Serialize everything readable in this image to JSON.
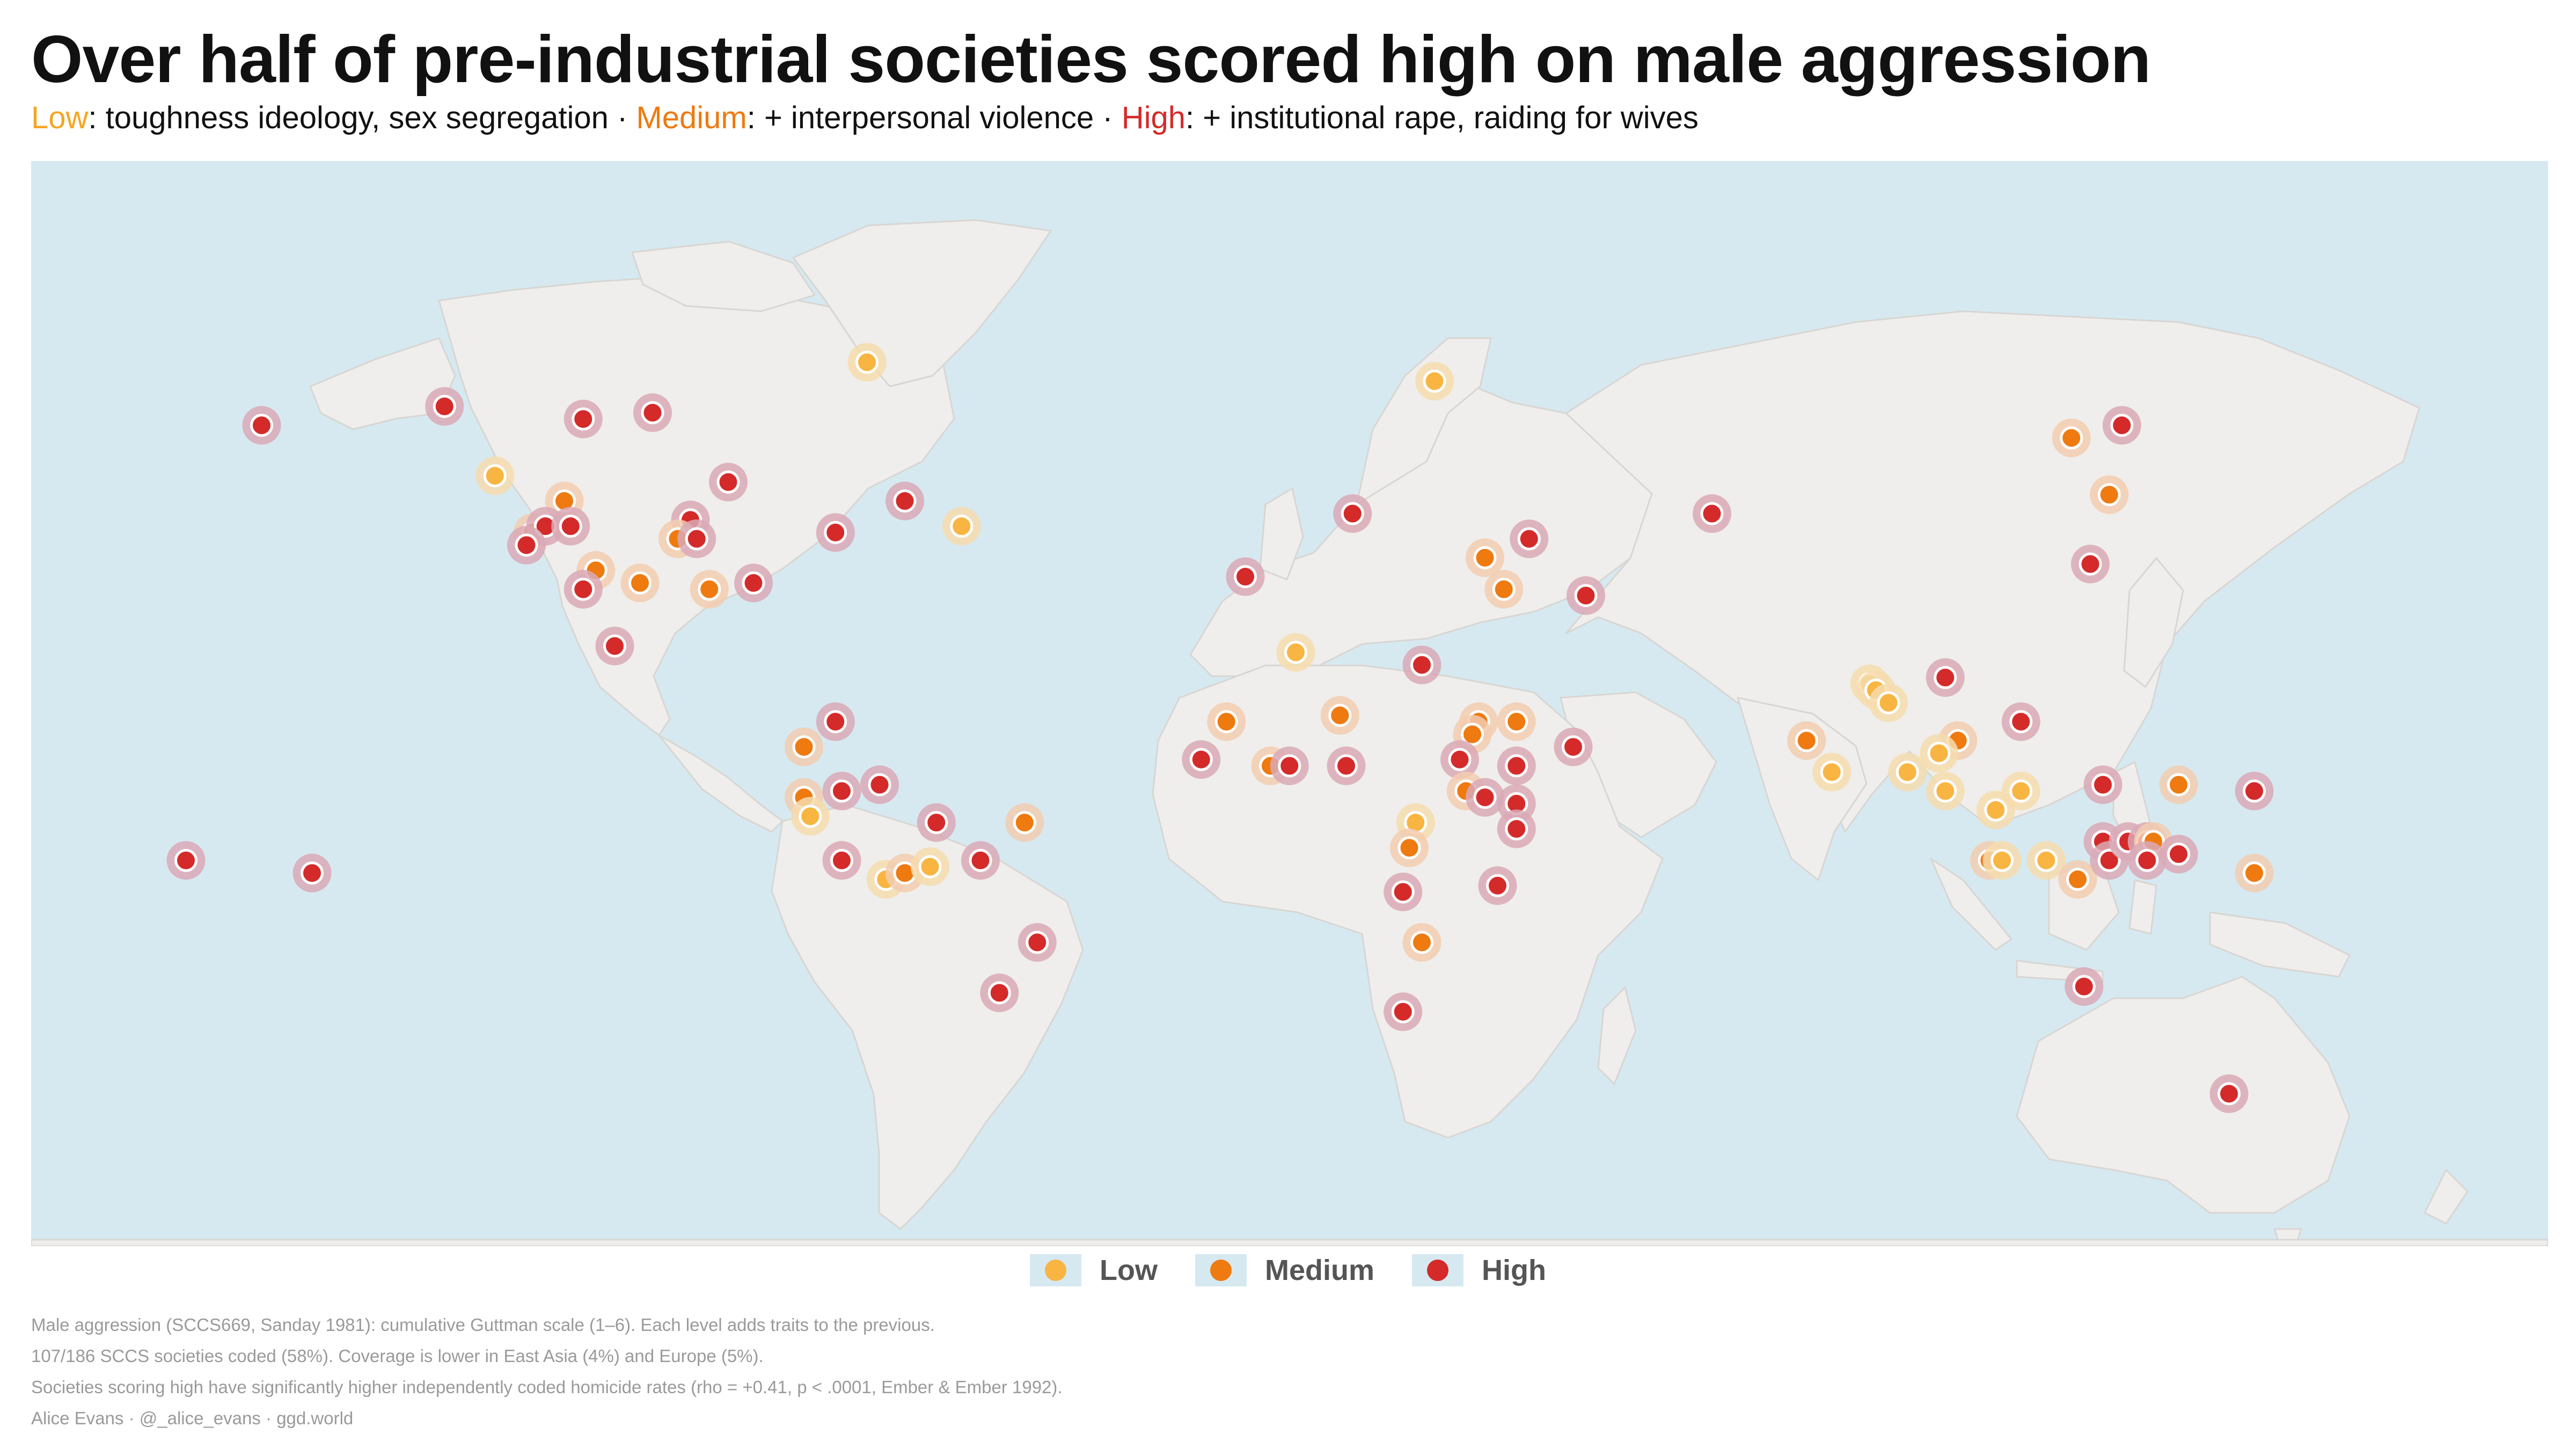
{
  "title": "Over half of pre-industrial societies scored high on male aggression",
  "subtitle": {
    "low_label": "Low",
    "low_text": ": toughness ideology, sex segregation · ",
    "medium_label": "Medium",
    "medium_text": ": + interpersonal violence · ",
    "high_label": "High",
    "high_text": ": + institutional rape, raiding for wives"
  },
  "colors": {
    "low": "#f8b542",
    "medium": "#ee7a10",
    "high": "#d42a2a",
    "ocean": "#d6e9f1",
    "land": "#efeeec"
  },
  "legend": {
    "items": [
      {
        "label": "Low",
        "level": "low"
      },
      {
        "label": "Medium",
        "level": "medium"
      },
      {
        "label": "High",
        "level": "high"
      }
    ]
  },
  "notes": {
    "line1": "Male aggression (SCCS669, Sanday 1981): cumulative Guttman scale (1–6). Each level adds traits to the previous.",
    "line2": "107/186 SCCS societies coded (58%). Coverage is lower in East Asia (4%) and Europe (5%).",
    "line3": "Societies scoring high have significantly higher independently coded homicide rates (rho = +0.41, p < .0001, Ember & Ember 1992).",
    "line4": "Alice Evans · @_alice_evans · ggd.world"
  },
  "map_data": {
    "projection": "equirectangular",
    "societies": [
      {
        "lon": -166,
        "lat": 66,
        "level": "high"
      },
      {
        "lon": -137,
        "lat": 69,
        "level": "high"
      },
      {
        "lon": -115,
        "lat": 67,
        "level": "high"
      },
      {
        "lon": -104,
        "lat": 68,
        "level": "high"
      },
      {
        "lon": -70,
        "lat": 76,
        "level": "low"
      },
      {
        "lon": -129,
        "lat": 58,
        "level": "low"
      },
      {
        "lon": -118,
        "lat": 54,
        "level": "medium"
      },
      {
        "lon": -92,
        "lat": 57,
        "level": "high"
      },
      {
        "lon": -64,
        "lat": 54,
        "level": "high"
      },
      {
        "lon": -55,
        "lat": 50,
        "level": "low"
      },
      {
        "lon": -98,
        "lat": 51,
        "level": "high"
      },
      {
        "lon": -75,
        "lat": 49,
        "level": "high"
      },
      {
        "lon": -123,
        "lat": 49,
        "level": "medium"
      },
      {
        "lon": -121,
        "lat": 50,
        "level": "high"
      },
      {
        "lon": -117,
        "lat": 50,
        "level": "high"
      },
      {
        "lon": -124,
        "lat": 47,
        "level": "high"
      },
      {
        "lon": -100,
        "lat": 48,
        "level": "medium"
      },
      {
        "lon": -97,
        "lat": 48,
        "level": "high"
      },
      {
        "lon": -113,
        "lat": 43,
        "level": "medium"
      },
      {
        "lon": -106,
        "lat": 41,
        "level": "medium"
      },
      {
        "lon": -95,
        "lat": 40,
        "level": "medium"
      },
      {
        "lon": -88,
        "lat": 41,
        "level": "high"
      },
      {
        "lon": -115,
        "lat": 40,
        "level": "high"
      },
      {
        "lon": -110,
        "lat": 31,
        "level": "high"
      },
      {
        "lon": -75,
        "lat": 19,
        "level": "high"
      },
      {
        "lon": -80,
        "lat": 15,
        "level": "medium"
      },
      {
        "lon": -80,
        "lat": 7,
        "level": "medium"
      },
      {
        "lon": -79,
        "lat": 4,
        "level": "low"
      },
      {
        "lon": -74,
        "lat": 8,
        "level": "high"
      },
      {
        "lon": -68,
        "lat": 9,
        "level": "high"
      },
      {
        "lon": -59,
        "lat": 3,
        "level": "high"
      },
      {
        "lon": -45,
        "lat": 3,
        "level": "medium"
      },
      {
        "lon": -74,
        "lat": -3,
        "level": "high"
      },
      {
        "lon": -67,
        "lat": -6,
        "level": "low"
      },
      {
        "lon": -64,
        "lat": -5,
        "level": "medium"
      },
      {
        "lon": -60,
        "lat": -4,
        "level": "low"
      },
      {
        "lon": -52,
        "lat": -3,
        "level": "high"
      },
      {
        "lon": -43,
        "lat": -16,
        "level": "high"
      },
      {
        "lon": -49,
        "lat": -24,
        "level": "high"
      },
      {
        "lon": -158,
        "lat": -5,
        "level": "high"
      },
      {
        "lon": -178,
        "lat": -3,
        "level": "high"
      },
      {
        "lon": -10,
        "lat": 42,
        "level": "high"
      },
      {
        "lon": 7,
        "lat": 52,
        "level": "high"
      },
      {
        "lon": 20,
        "lat": 73,
        "level": "low"
      },
      {
        "lon": 35,
        "lat": 48,
        "level": "high"
      },
      {
        "lon": 28,
        "lat": 45,
        "level": "medium"
      },
      {
        "lon": 44,
        "lat": 39,
        "level": "high"
      },
      {
        "lon": 31,
        "lat": 40,
        "level": "medium"
      },
      {
        "lon": 64,
        "lat": 52,
        "level": "high"
      },
      {
        "lon": -2,
        "lat": 30,
        "level": "low"
      },
      {
        "lon": 18,
        "lat": 28,
        "level": "high"
      },
      {
        "lon": -13,
        "lat": 19,
        "level": "medium"
      },
      {
        "lon": 5,
        "lat": 20,
        "level": "medium"
      },
      {
        "lon": -17,
        "lat": 13,
        "level": "high"
      },
      {
        "lon": -6,
        "lat": 12,
        "level": "medium"
      },
      {
        "lon": -3,
        "lat": 12,
        "level": "high"
      },
      {
        "lon": 6,
        "lat": 12,
        "level": "high"
      },
      {
        "lon": 27,
        "lat": 19,
        "level": "medium"
      },
      {
        "lon": 26,
        "lat": 17,
        "level": "medium"
      },
      {
        "lon": 33,
        "lat": 19,
        "level": "medium"
      },
      {
        "lon": 24,
        "lat": 13,
        "level": "high"
      },
      {
        "lon": 33,
        "lat": 12,
        "level": "high"
      },
      {
        "lon": 42,
        "lat": 15,
        "level": "high"
      },
      {
        "lon": 25,
        "lat": 8,
        "level": "medium"
      },
      {
        "lon": 28,
        "lat": 7,
        "level": "high"
      },
      {
        "lon": 33,
        "lat": 6,
        "level": "high"
      },
      {
        "lon": 33,
        "lat": 2,
        "level": "high"
      },
      {
        "lon": 17,
        "lat": 3,
        "level": "low"
      },
      {
        "lon": 16,
        "lat": -1,
        "level": "medium"
      },
      {
        "lon": 15,
        "lat": -8,
        "level": "high"
      },
      {
        "lon": 30,
        "lat": -7,
        "level": "high"
      },
      {
        "lon": 18,
        "lat": -16,
        "level": "medium"
      },
      {
        "lon": 15,
        "lat": -27,
        "level": "high"
      },
      {
        "lon": 79,
        "lat": 16,
        "level": "medium"
      },
      {
        "lon": 83,
        "lat": 11,
        "level": "low"
      },
      {
        "lon": 89,
        "lat": 25,
        "level": "low"
      },
      {
        "lon": 90,
        "lat": 24,
        "level": "low"
      },
      {
        "lon": 92,
        "lat": 22,
        "level": "low"
      },
      {
        "lon": 101,
        "lat": 26,
        "level": "high"
      },
      {
        "lon": 103,
        "lat": 16,
        "level": "medium"
      },
      {
        "lon": 95,
        "lat": 11,
        "level": "low"
      },
      {
        "lon": 100,
        "lat": 14,
        "level": "low"
      },
      {
        "lon": 101,
        "lat": 8,
        "level": "low"
      },
      {
        "lon": 109,
        "lat": 5,
        "level": "low"
      },
      {
        "lon": 113,
        "lat": 8,
        "level": "low"
      },
      {
        "lon": 113,
        "lat": 19,
        "level": "high"
      },
      {
        "lon": 108,
        "lat": -3,
        "level": "medium"
      },
      {
        "lon": 110,
        "lat": -3,
        "level": "low"
      },
      {
        "lon": 117,
        "lat": -3,
        "level": "low"
      },
      {
        "lon": 122,
        "lat": -6,
        "level": "medium"
      },
      {
        "lon": 126,
        "lat": 9,
        "level": "high"
      },
      {
        "lon": 126,
        "lat": 0,
        "level": "high"
      },
      {
        "lon": 127,
        "lat": -3,
        "level": "high"
      },
      {
        "lon": 130,
        "lat": 0,
        "level": "high"
      },
      {
        "lon": 133,
        "lat": 0,
        "level": "high"
      },
      {
        "lon": 134,
        "lat": 0,
        "level": "medium"
      },
      {
        "lon": 133,
        "lat": -3,
        "level": "high"
      },
      {
        "lon": 138,
        "lat": -2,
        "level": "high"
      },
      {
        "lon": 138,
        "lat": 9,
        "level": "medium"
      },
      {
        "lon": 150,
        "lat": 8,
        "level": "high"
      },
      {
        "lon": 150,
        "lat": -5,
        "level": "medium"
      },
      {
        "lon": 123,
        "lat": -23,
        "level": "high"
      },
      {
        "lon": 146,
        "lat": -40,
        "level": "high"
      },
      {
        "lon": 121,
        "lat": 64,
        "level": "medium"
      },
      {
        "lon": 127,
        "lat": 55,
        "level": "medium"
      },
      {
        "lon": 124,
        "lat": 44,
        "level": "high"
      },
      {
        "lon": 129,
        "lat": 66,
        "level": "high"
      }
    ]
  }
}
